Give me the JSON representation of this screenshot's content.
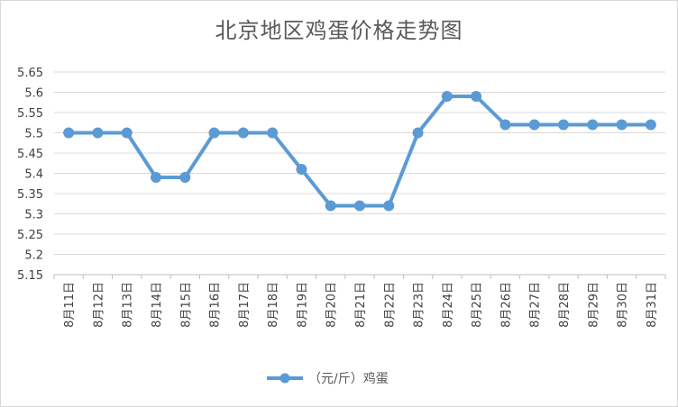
{
  "chart_data": {
    "type": "line",
    "title": "北京地区鸡蛋价格走势图",
    "categories": [
      "8月11日",
      "8月12日",
      "8月13日",
      "8月14日",
      "8月15日",
      "8月16日",
      "8月17日",
      "8月18日",
      "8月19日",
      "8月20日",
      "8月21日",
      "8月22日",
      "8月23日",
      "8月24日",
      "8月25日",
      "8月26日",
      "8月27日",
      "8月28日",
      "8月29日",
      "8月30日",
      "8月31日"
    ],
    "series": [
      {
        "name": "（元/斤）鸡蛋",
        "values": [
          5.5,
          5.5,
          5.5,
          5.39,
          5.39,
          5.5,
          5.5,
          5.5,
          5.41,
          5.32,
          5.32,
          5.32,
          5.5,
          5.59,
          5.59,
          5.52,
          5.52,
          5.52,
          5.52,
          5.52,
          5.52
        ],
        "color": "#5b9bd5"
      }
    ],
    "yticks": [
      "5.15",
      "5.2",
      "5.25",
      "5.3",
      "5.35",
      "5.4",
      "5.45",
      "5.5",
      "5.55",
      "5.6",
      "5.65"
    ],
    "ylim": [
      5.15,
      5.65
    ],
    "grid": true,
    "legend_position": "bottom"
  }
}
